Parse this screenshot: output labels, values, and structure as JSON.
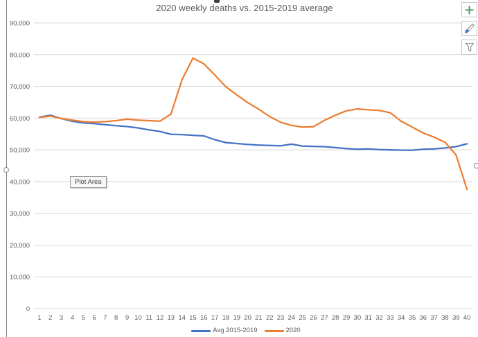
{
  "chart_data": {
    "type": "line",
    "title": "2020 weekly deaths vs. 2015-2019 average",
    "xlabel": "",
    "ylabel": "",
    "ylim": [
      0,
      90000
    ],
    "ytick_step": 10000,
    "ytick_labels": [
      "0",
      "10,000",
      "20,000",
      "30,000",
      "40,000",
      "50,000",
      "60,000",
      "70,000",
      "80,000",
      "90,000"
    ],
    "grid": true,
    "legend_position": "bottom",
    "categories": [
      1,
      2,
      3,
      4,
      5,
      6,
      7,
      8,
      9,
      10,
      11,
      12,
      13,
      14,
      15,
      16,
      17,
      18,
      19,
      20,
      21,
      22,
      23,
      24,
      25,
      26,
      27,
      28,
      29,
      30,
      31,
      32,
      33,
      34,
      35,
      36,
      37,
      38,
      39,
      40
    ],
    "series": [
      {
        "name": "Avg 2015-2019",
        "color": "#4472C4",
        "values": [
          60300,
          60900,
          59850,
          59000,
          58500,
          58250,
          57900,
          57600,
          57350,
          56900,
          56300,
          55800,
          54900,
          54800,
          54600,
          54400,
          53200,
          52300,
          52000,
          51700,
          51500,
          51400,
          51300,
          51800,
          51200,
          51100,
          51000,
          50700,
          50400,
          50200,
          50300,
          50100,
          50000,
          49900,
          49900,
          50200,
          50300,
          50600,
          51000,
          51900
        ]
      },
      {
        "name": "2020",
        "color": "#ED7D31",
        "values": [
          60200,
          60650,
          59850,
          59350,
          58900,
          58750,
          58900,
          59200,
          59650,
          59350,
          59200,
          59050,
          61300,
          72000,
          78900,
          77100,
          73600,
          69900,
          67300,
          64900,
          62800,
          60500,
          58700,
          57700,
          57200,
          57300,
          59300,
          60900,
          62300,
          62900,
          62600,
          62400,
          61700,
          59000,
          57200,
          55300,
          54000,
          52400,
          48400,
          37500
        ]
      }
    ]
  },
  "ui": {
    "tooltip_label": "Plot Area",
    "icons": {
      "chart_elements": "plus-icon",
      "chart_styles": "paintbrush-icon",
      "chart_filters": "funnel-icon"
    }
  },
  "colors": {
    "gridline": "#D9D9D9",
    "axis_text": "#595959",
    "plus_green": "#4E9E5F",
    "brush_blue": "#3A79D6",
    "icon_gray": "#8A8A8A"
  }
}
